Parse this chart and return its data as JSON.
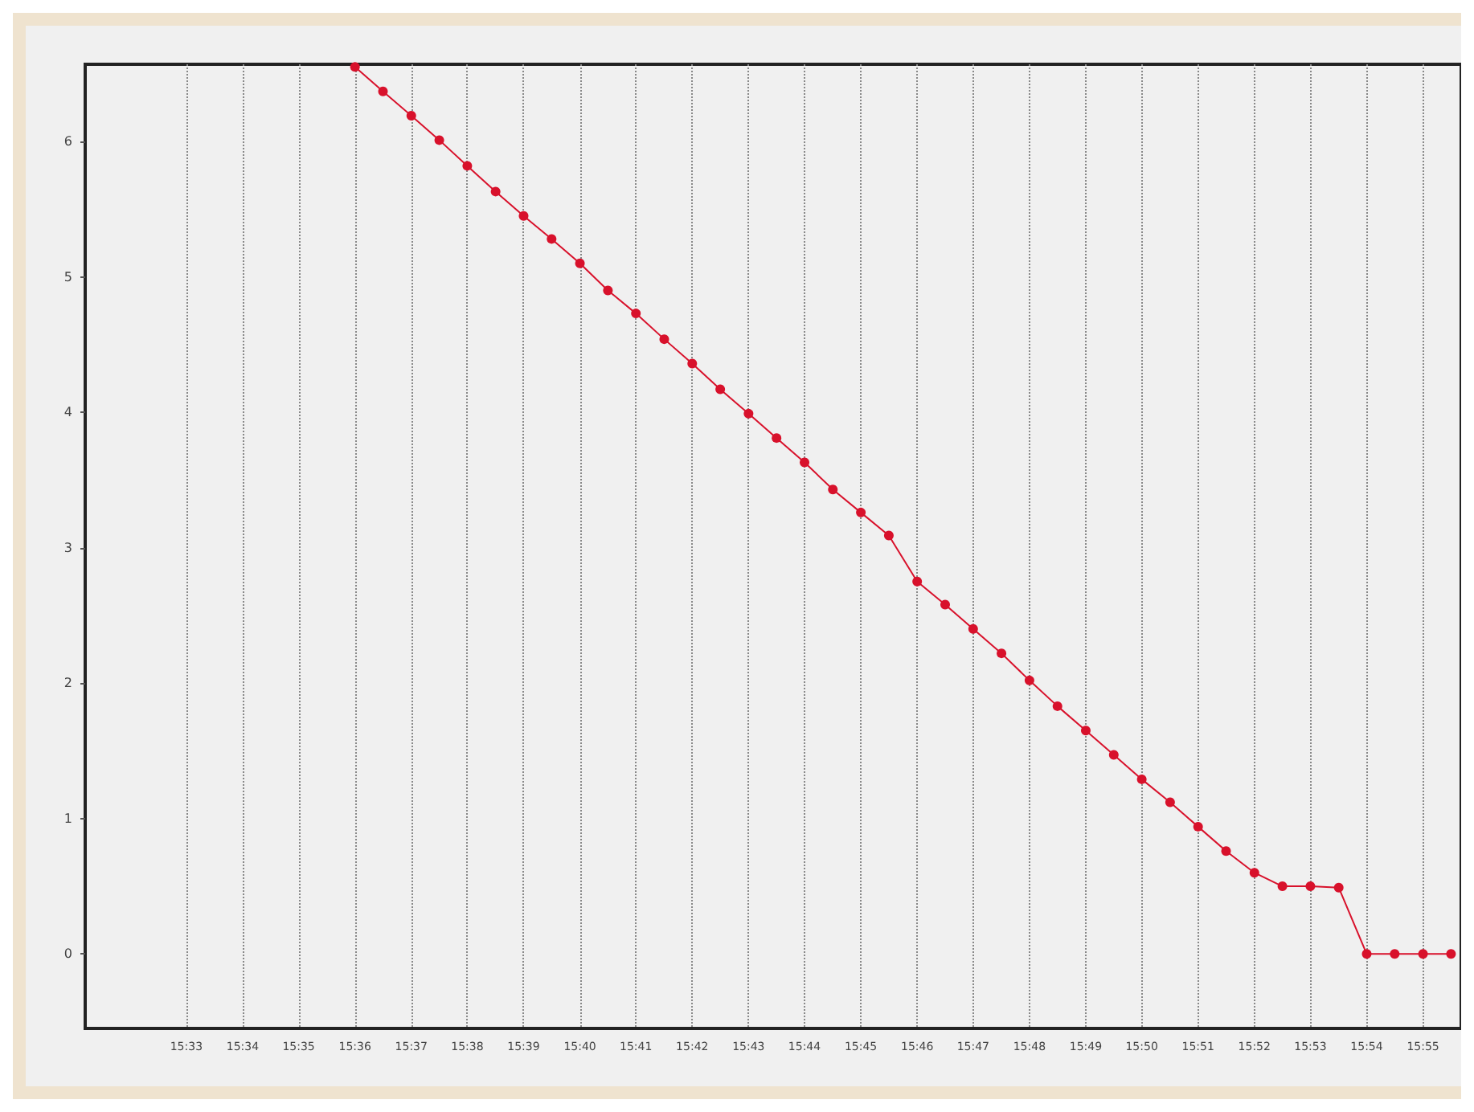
{
  "chart_data": {
    "type": "line",
    "x": [
      15.6,
      15.6083,
      15.6167,
      15.625,
      15.6333,
      15.6417,
      15.65,
      15.6583,
      15.6667,
      15.675,
      15.6833,
      15.6917,
      15.7,
      15.7083,
      15.7167,
      15.725,
      15.7333,
      15.7417,
      15.75,
      15.7583,
      15.7667,
      15.775,
      15.7833,
      15.7917,
      15.8,
      15.8083,
      15.8167,
      15.825,
      15.8333,
      15.8417,
      15.85,
      15.8583,
      15.8667,
      15.875,
      15.8833,
      15.8917,
      15.9,
      15.9083,
      15.9167,
      15.925
    ],
    "series": [
      {
        "color": "#d8112b",
        "values": [
          6.55,
          6.37,
          6.19,
          6.01,
          5.82,
          5.63,
          5.45,
          5.28,
          5.1,
          4.9,
          4.73,
          4.54,
          4.36,
          4.17,
          3.99,
          3.81,
          3.63,
          3.43,
          3.26,
          3.09,
          2.75,
          2.58,
          2.4,
          2.22,
          2.02,
          1.83,
          1.65,
          1.47,
          1.29,
          1.12,
          0.94,
          0.76,
          0.6,
          0.5,
          0.5,
          0.49,
          0,
          0,
          0,
          0
        ]
      }
    ],
    "xlim": [
      15.52,
      15.928
    ],
    "xticks": [
      {
        "value": 15.55,
        "label": "15:33"
      },
      {
        "value": 15.5667,
        "label": "15:34"
      },
      {
        "value": 15.5833,
        "label": "15:35"
      },
      {
        "value": 15.6,
        "label": "15:36"
      },
      {
        "value": 15.6167,
        "label": "15:37"
      },
      {
        "value": 15.6333,
        "label": "15:38"
      },
      {
        "value": 15.65,
        "label": "15:39"
      },
      {
        "value": 15.6667,
        "label": "15:40"
      },
      {
        "value": 15.6833,
        "label": "15:41"
      },
      {
        "value": 15.7,
        "label": "15:42"
      },
      {
        "value": 15.7167,
        "label": "15:43"
      },
      {
        "value": 15.7333,
        "label": "15:44"
      },
      {
        "value": 15.75,
        "label": "15:45"
      },
      {
        "value": 15.7667,
        "label": "15:46"
      },
      {
        "value": 15.7833,
        "label": "15:47"
      },
      {
        "value": 15.8,
        "label": "15:48"
      },
      {
        "value": 15.8167,
        "label": "15:49"
      },
      {
        "value": 15.8333,
        "label": "15:50"
      },
      {
        "value": 15.85,
        "label": "15:51"
      },
      {
        "value": 15.8667,
        "label": "15:52"
      },
      {
        "value": 15.8833,
        "label": "15:53"
      },
      {
        "value": 15.9,
        "label": "15:54"
      },
      {
        "value": 15.9167,
        "label": "15:55"
      }
    ],
    "ylim": [
      -0.55,
      6.57
    ],
    "yticks": [
      0,
      1,
      2,
      3,
      4,
      5,
      6
    ],
    "grid": "x",
    "marker": "circle",
    "line_style": "solid"
  }
}
